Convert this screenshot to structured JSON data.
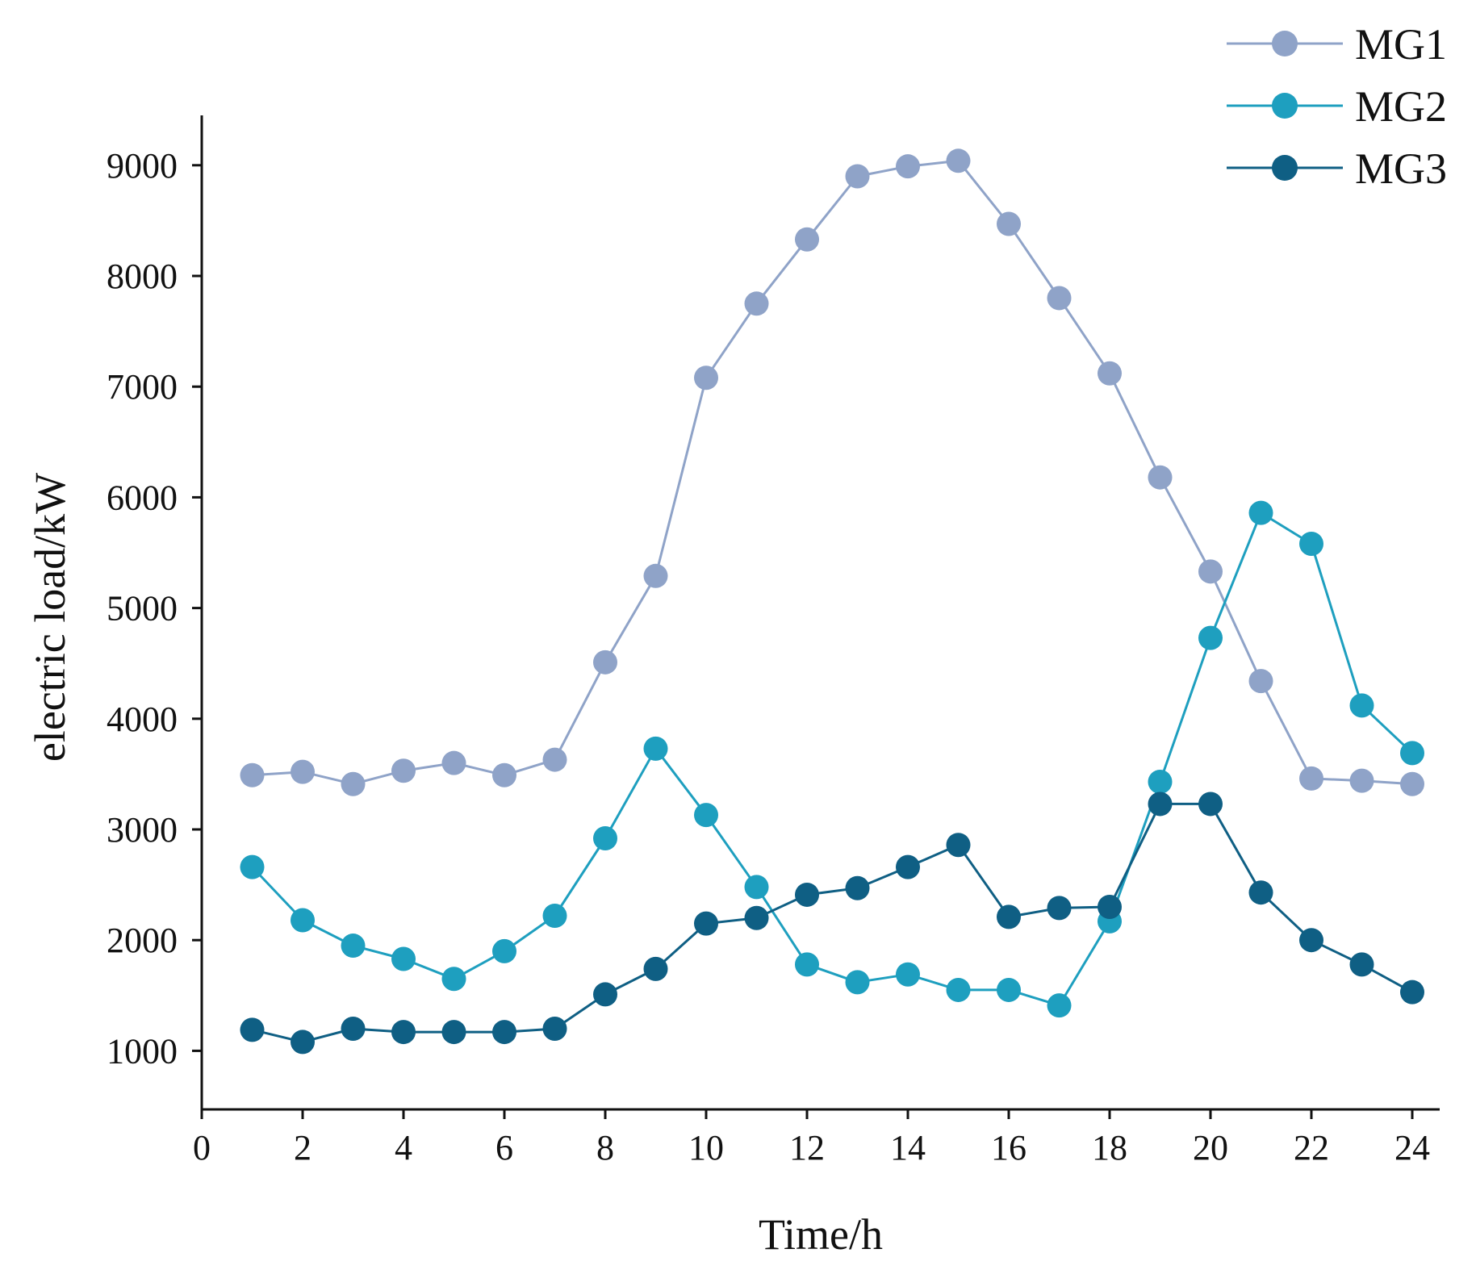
{
  "chart_data": {
    "type": "line",
    "title": "",
    "xlabel": "Time/h",
    "ylabel": "electric load/kW",
    "xlim": [
      0,
      24.5
    ],
    "ylim": [
      500,
      9500
    ],
    "xticks": [
      0,
      2,
      4,
      6,
      8,
      10,
      12,
      14,
      16,
      18,
      20,
      22,
      24
    ],
    "yticks": [
      1000,
      2000,
      3000,
      4000,
      5000,
      6000,
      7000,
      8000,
      9000
    ],
    "grid": false,
    "legend_position": "top-right",
    "x": [
      1,
      2,
      3,
      4,
      5,
      6,
      7,
      8,
      9,
      10,
      11,
      12,
      13,
      14,
      15,
      16,
      17,
      18,
      19,
      20,
      21,
      22,
      23,
      24
    ],
    "series": [
      {
        "name": "MG1",
        "color": "#8fa3c8",
        "values": [
          3490,
          3520,
          3410,
          3530,
          3600,
          3490,
          3630,
          4510,
          5290,
          7080,
          7750,
          8330,
          8900,
          8990,
          9040,
          8470,
          7800,
          7120,
          6180,
          5330,
          4340,
          3460,
          3440,
          3410
        ]
      },
      {
        "name": "MG2",
        "color": "#1e9fbf",
        "values": [
          2660,
          2180,
          1950,
          1830,
          1650,
          1900,
          2220,
          2920,
          3730,
          3130,
          2480,
          1780,
          1620,
          1690,
          1550,
          1550,
          1410,
          2170,
          3430,
          4730,
          5860,
          5580,
          4120,
          3690
        ]
      },
      {
        "name": "MG3",
        "color": "#0f5f84",
        "values": [
          1190,
          1080,
          1200,
          1170,
          1170,
          1170,
          1200,
          1510,
          1740,
          2150,
          2200,
          2410,
          2470,
          2660,
          2860,
          2210,
          2290,
          2300,
          3230,
          3230,
          2430,
          2000,
          1780,
          1530
        ]
      }
    ]
  }
}
